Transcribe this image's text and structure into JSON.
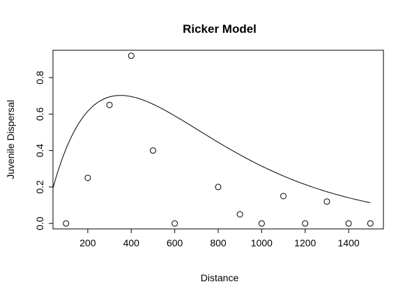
{
  "chart_data": {
    "type": "scatter",
    "title": "Ricker Model",
    "xlabel": "Distance",
    "ylabel": "Juvenile Dispersal",
    "xlim": [
      40,
      1560
    ],
    "ylim": [
      -0.03,
      0.95
    ],
    "xticks": [
      200,
      400,
      600,
      800,
      1000,
      1200,
      1400
    ],
    "xtick_labels": [
      "200",
      "400",
      "600",
      "800",
      "1000",
      "1200",
      "1400"
    ],
    "yticks": [
      0.0,
      0.2,
      0.4,
      0.6,
      0.8
    ],
    "ytick_labels": [
      "0.0",
      "0.2",
      "0.4",
      "0.6",
      "0.8"
    ],
    "grid": false,
    "series": [
      {
        "type": "scatter",
        "marker": "open-circle",
        "x": [
          100,
          200,
          300,
          400,
          500,
          600,
          800,
          900,
          1000,
          1100,
          1200,
          1300,
          1400,
          1500
        ],
        "y": [
          0.0,
          0.25,
          0.65,
          0.92,
          0.4,
          0.0,
          0.2,
          0.05,
          0.0,
          0.15,
          0.0,
          0.12,
          0.0,
          0.0
        ]
      },
      {
        "type": "line",
        "model": "ricker",
        "a": 0.00544,
        "b": 0.00285,
        "x_range": [
          40,
          1500
        ]
      }
    ]
  }
}
